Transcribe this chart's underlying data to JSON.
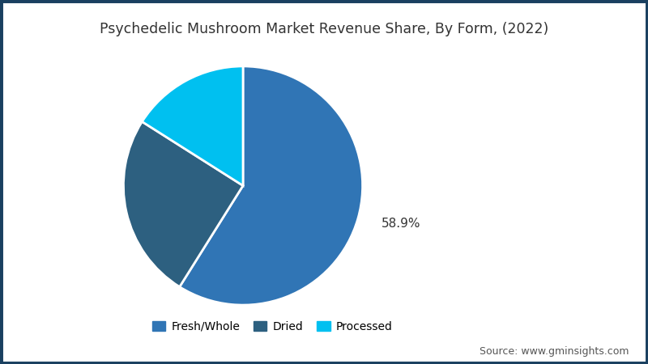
{
  "title": "Psychedelic Mushroom Market Revenue Share, By Form, (2022)",
  "slices": [
    {
      "label": "Fresh/Whole",
      "value": 58.9,
      "color": "#3075b5"
    },
    {
      "label": "Dried",
      "value": 25.1,
      "color": "#2d6080"
    },
    {
      "label": "Processed",
      "value": 16.0,
      "color": "#00c0f0"
    }
  ],
  "label_text": "58.9%",
  "source_text": "Source: www.gminsights.com",
  "background_color": "#ffffff",
  "border_color": "#1a4060",
  "title_fontsize": 12.5,
  "legend_fontsize": 10,
  "source_fontsize": 9,
  "startangle": 90
}
